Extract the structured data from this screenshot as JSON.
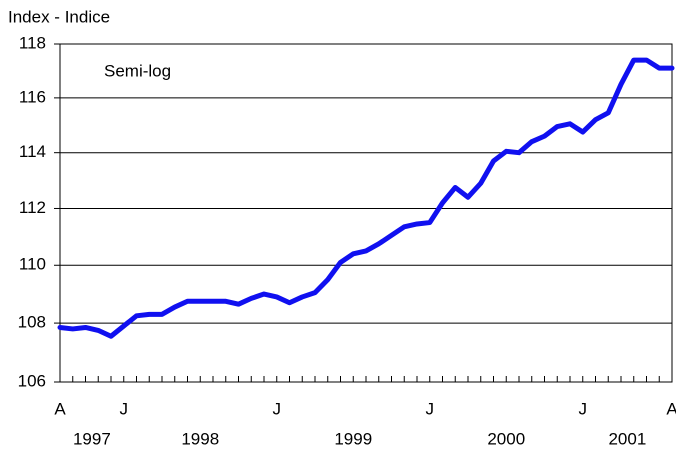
{
  "chart_data": {
    "type": "line",
    "y_label": "Index - Indice",
    "annotation": "Semi-log",
    "log_scale": true,
    "grid": true,
    "categories": [
      "A",
      null,
      null,
      null,
      null,
      "J",
      null,
      null,
      null,
      null,
      null,
      null,
      null,
      null,
      null,
      null,
      null,
      "J",
      null,
      null,
      null,
      null,
      null,
      null,
      null,
      null,
      null,
      null,
      null,
      "J",
      null,
      null,
      null,
      null,
      null,
      null,
      null,
      null,
      null,
      null,
      null,
      "J",
      null,
      null,
      null,
      null,
      null,
      null,
      "A"
    ],
    "years": [
      "1997",
      "1998",
      "1999",
      "2000",
      "2001"
    ],
    "series": [
      {
        "name": "Index",
        "color": "#1010f0",
        "values": [
          107.85,
          107.8,
          107.85,
          107.75,
          107.55,
          107.9,
          108.25,
          108.3,
          108.3,
          108.55,
          108.75,
          108.75,
          108.75,
          108.75,
          108.65,
          108.85,
          109.0,
          108.9,
          108.7,
          108.9,
          109.05,
          109.5,
          110.1,
          110.4,
          110.5,
          110.75,
          111.05,
          111.35,
          111.45,
          111.5,
          112.2,
          112.75,
          112.4,
          112.9,
          113.7,
          114.05,
          114.0,
          114.4,
          114.6,
          114.95,
          115.05,
          114.75,
          115.2,
          115.45,
          116.5,
          117.4,
          117.4,
          117.1,
          117.1
        ]
      }
    ],
    "ylim": [
      106,
      118
    ],
    "yticks": [
      106,
      108,
      110,
      112,
      114,
      116,
      118
    ]
  }
}
